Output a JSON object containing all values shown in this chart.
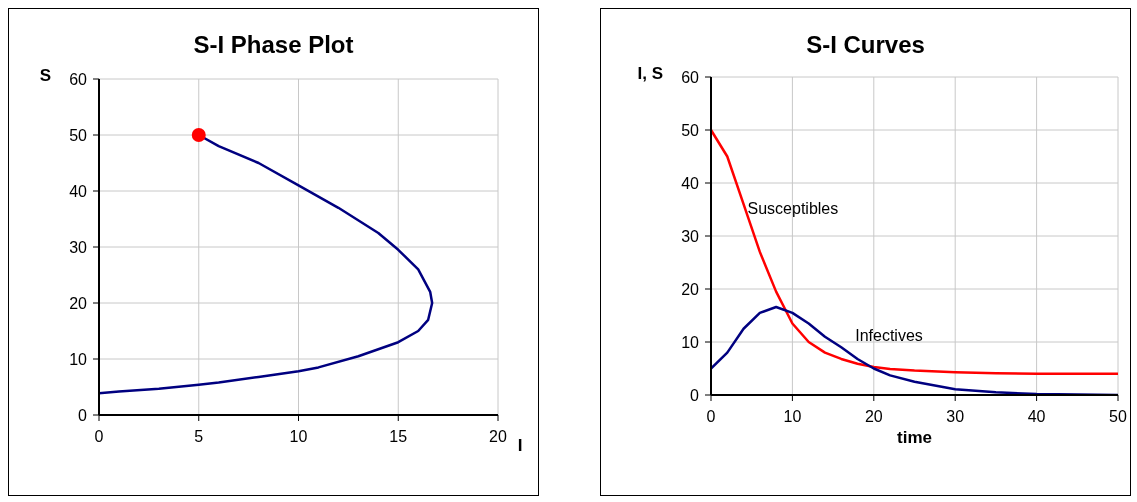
{
  "chart_data": [
    {
      "type": "line",
      "title": "S-I Phase Plot",
      "xlabel": "I",
      "ylabel": "S",
      "xlim": [
        0,
        20
      ],
      "xticks": [
        0,
        5,
        10,
        15,
        20
      ],
      "ylim": [
        0,
        60
      ],
      "yticks": [
        0,
        10,
        20,
        30,
        40,
        50,
        60
      ],
      "grid": true,
      "legend": false,
      "series": [
        {
          "type": "line",
          "color": "#000080",
          "x": [
            5,
            6,
            8,
            10,
            12,
            14,
            15,
            16,
            16.6,
            16.7,
            16.5,
            16,
            15,
            13,
            11,
            10,
            8,
            6,
            5,
            3,
            1,
            0
          ],
          "values": [
            50,
            48,
            45,
            41,
            37,
            32.5,
            29.5,
            26,
            22,
            20,
            17,
            15,
            13,
            10.5,
            8.5,
            7.8,
            6.8,
            5.8,
            5.4,
            4.7,
            4.2,
            3.9
          ]
        },
        {
          "type": "scatter",
          "color": "#ff0000",
          "marker": "circle",
          "x": [
            5
          ],
          "values": [
            50
          ]
        }
      ]
    },
    {
      "type": "line",
      "title": "S-I Curves",
      "xlabel": "time",
      "ylabel": "I, S",
      "xlim": [
        0,
        50
      ],
      "xticks": [
        0,
        10,
        20,
        30,
        40,
        50
      ],
      "ylim": [
        0,
        60
      ],
      "yticks": [
        0,
        10,
        20,
        30,
        40,
        50,
        60
      ],
      "grid": true,
      "legend": false,
      "x": [
        0,
        2,
        4,
        6,
        8,
        10,
        12,
        14,
        16,
        18,
        20,
        22,
        25,
        30,
        35,
        40,
        45,
        50
      ],
      "series": [
        {
          "name": "Susceptibles",
          "color": "#ff0000",
          "values": [
            50,
            45,
            36,
            27,
            19.5,
            13.5,
            10,
            8,
            6.8,
            5.9,
            5.3,
            4.9,
            4.6,
            4.3,
            4.1,
            4.0,
            4.0,
            4.0
          ]
        },
        {
          "name": "Infectives",
          "color": "#000080",
          "values": [
            5,
            8,
            12.5,
            15.5,
            16.6,
            15.5,
            13.5,
            11,
            9,
            6.8,
            5,
            3.7,
            2.5,
            1.1,
            0.5,
            0.2,
            0.1,
            0
          ]
        }
      ]
    }
  ]
}
